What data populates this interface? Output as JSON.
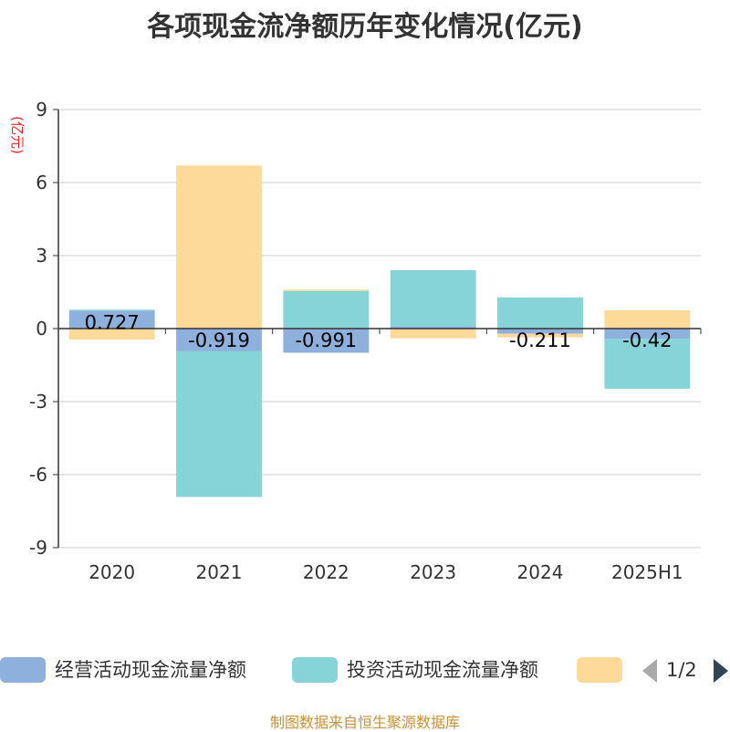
{
  "chart_data": {
    "type": "bar",
    "stacked": true,
    "title": "各项现金流净额历年变化情况(亿元)",
    "ylabel": "(亿元)",
    "categories": [
      "2020",
      "2021",
      "2022",
      "2023",
      "2024",
      "2025H1"
    ],
    "ylim": [
      -9,
      9
    ],
    "yticks": [
      9,
      6,
      3,
      0,
      -3,
      -6,
      -9
    ],
    "grid": true,
    "series": [
      {
        "name": "经营活动现金流量净额",
        "color": "#8eb0dc",
        "values": [
          0.727,
          -0.919,
          -0.991,
          0.1,
          -0.211,
          -0.42
        ],
        "labels": [
          "0.727",
          "-0.919",
          "-0.991",
          "",
          "-0.211",
          "-0.42"
        ]
      },
      {
        "name": "投资活动现金流量净额",
        "color": "#86d4d8",
        "values": [
          0.05,
          -6.0,
          1.55,
          2.3,
          1.28,
          -2.05
        ]
      },
      {
        "name": "",
        "color": "#fdd99a",
        "values": [
          -0.45,
          6.7,
          0.05,
          -0.4,
          -0.15,
          0.75
        ]
      }
    ],
    "legend": {
      "position": "bottom",
      "page_indicator": "1/2"
    },
    "source": "制图数据来自恒生聚源数据库"
  }
}
